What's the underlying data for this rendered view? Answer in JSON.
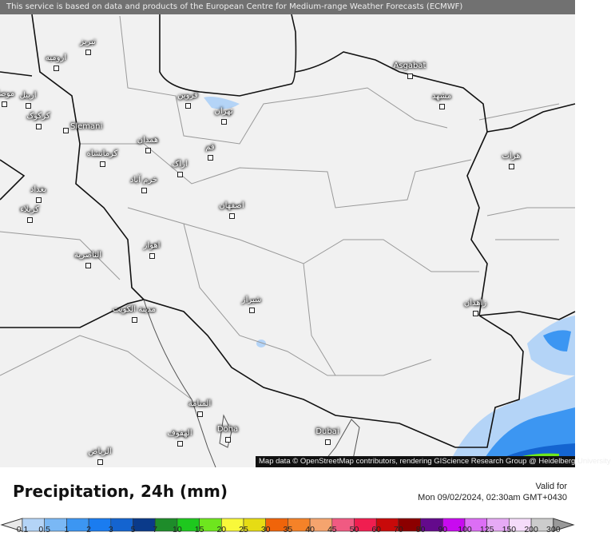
{
  "banner": "This service is based on data and products of the European Centre for Medium-range Weather Forecasts (ECMWF)",
  "attribution": "Map data © OpenStreetMap contributors, rendering GIScience Research Group @ Heidelberg University",
  "title": "Precipitation, 24h (mm)",
  "valid_label": "Valid for",
  "valid_time": "Mon 09/02/2024, 02:30am GMT+0430",
  "cities": [
    {
      "name": "تبریز"
    },
    {
      "name": "ارومیه"
    },
    {
      "name": "موصل"
    },
    {
      "name": "اربیل"
    },
    {
      "name": "کرکوک"
    },
    {
      "name": "Slemani"
    },
    {
      "name": "قزوین"
    },
    {
      "name": "تهران"
    },
    {
      "name": "همدان"
    },
    {
      "name": "کرمانشاه"
    },
    {
      "name": "قم"
    },
    {
      "name": "اراک"
    },
    {
      "name": "خرم آباد"
    },
    {
      "name": "بغداد"
    },
    {
      "name": "کربلاء"
    },
    {
      "name": "اصفهان"
    },
    {
      "name": "اهواز"
    },
    {
      "name": "الناصرية"
    },
    {
      "name": "مدينة الكويت"
    },
    {
      "name": "شیراز"
    },
    {
      "name": "زاهدان"
    },
    {
      "name": "هرات"
    },
    {
      "name": "مشهد"
    },
    {
      "name": "Asgabat"
    },
    {
      "name": "المنامة"
    },
    {
      "name": "الهفوف"
    },
    {
      "name": "Doha"
    },
    {
      "name": "Dubai"
    },
    {
      "name": "الرياض"
    }
  ],
  "legend": {
    "ticks": [
      "0.1",
      "0.5",
      "1",
      "2",
      "3",
      "5",
      "7",
      "10",
      "15",
      "20",
      "25",
      "30",
      "35",
      "40",
      "45",
      "50",
      "60",
      "70",
      "80",
      "90",
      "100",
      "125",
      "150",
      "200",
      "300"
    ],
    "colors": [
      "#b4d4f7",
      "#7ab8f5",
      "#3c96f2",
      "#1a7cf0",
      "#1464d0",
      "#0a3a8a",
      "#1e8c2a",
      "#1ec81e",
      "#6ee61e",
      "#f8f83a",
      "#e6dc14",
      "#f0640a",
      "#f58228",
      "#f5a46e",
      "#f05a82",
      "#f01e50",
      "#c80a0a",
      "#8c0000",
      "#640a8c",
      "#c80af0",
      "#dc6ef5",
      "#e6aaf5",
      "#f5dcfa",
      "#cccccc"
    ],
    "under_color": "#e8e8e8",
    "over_color": "#999999"
  }
}
